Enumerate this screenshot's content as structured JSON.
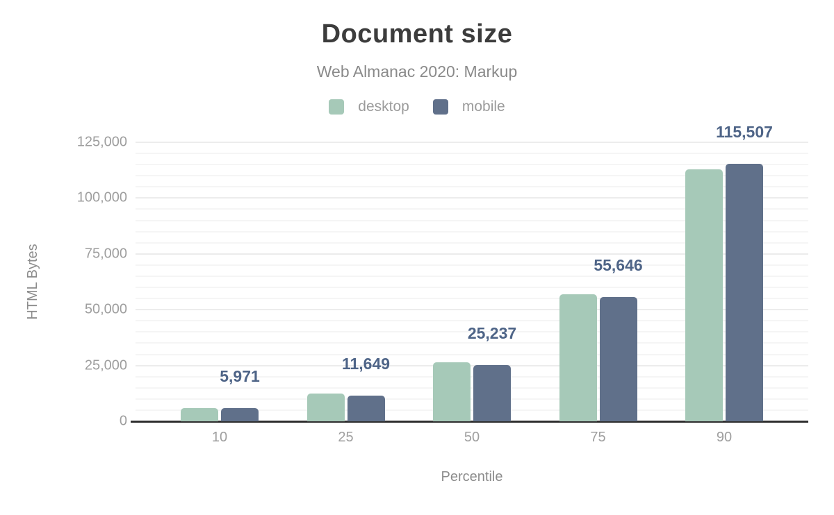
{
  "chart_data": {
    "type": "bar",
    "title": "Document size",
    "subtitle": "Web Almanac 2020: Markup",
    "categories": [
      "10",
      "25",
      "50",
      "75",
      "90"
    ],
    "series": [
      {
        "name": "desktop",
        "color": "#a6c9b8",
        "values": [
          6000,
          12400,
          26400,
          57000,
          113000
        ]
      },
      {
        "name": "mobile",
        "color": "#60708a",
        "values": [
          5971,
          11649,
          25237,
          55646,
          115507
        ]
      }
    ],
    "data_labels": {
      "series": "mobile",
      "values": [
        "5,971",
        "11,649",
        "25,237",
        "55,646",
        "115,507"
      ],
      "color": "#4e6487"
    },
    "xlabel": "Percentile",
    "ylabel": "HTML Bytes",
    "ylim": [
      0,
      125000
    ],
    "ytick_step": 25000,
    "gridline_step": 5000,
    "yticks": [
      "0",
      "25,000",
      "50,000",
      "75,000",
      "100,000",
      "125,000"
    ],
    "grid": "horizontal",
    "legend_position": "top",
    "colors": {
      "title": "#3c3c3c",
      "subtitle": "#8a8a8a",
      "axis_text": "#9e9e9e",
      "axis_title": "#8c8c8c",
      "baseline": "#2e2e2e",
      "gridline": "#f5f5f5"
    }
  }
}
